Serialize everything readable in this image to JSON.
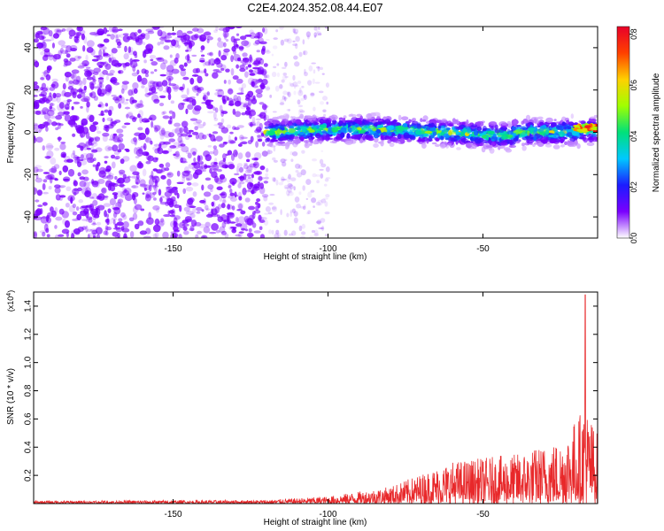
{
  "title": "C2E4.2024.352.08.44.E07",
  "colors": {
    "snr_line": "#e8282a",
    "frame": "#000000",
    "colorbar": [
      "#ffffff",
      "#7a00ff",
      "#1c1cff",
      "#00c8ff",
      "#00e07a",
      "#a0ff00",
      "#ffd000",
      "#ff4000",
      "#e8002a"
    ]
  },
  "chart_data": [
    {
      "type": "heatmap",
      "xlabel": "Height of straight line (km)",
      "ylabel": "Frequency (Hz)",
      "xlim": [
        -195,
        -13
      ],
      "ylim": [
        -50,
        50
      ],
      "x_ticks": [
        -150,
        -100,
        -50
      ],
      "y_ticks": [
        -40,
        -20,
        0,
        20,
        40
      ],
      "colorbar": {
        "label": "Normalized spectral amplitude",
        "range": [
          0,
          0.83
        ],
        "ticks": [
          0.0,
          0.2,
          0.4,
          0.6,
          0.8
        ],
        "tick_labels": [
          "0.0",
          "0.2",
          "0.4",
          "0.6",
          "0.8"
        ]
      },
      "regions": [
        {
          "x_range": [
            -195,
            -120
          ],
          "freq_range": [
            -50,
            50
          ],
          "amplitude": 0.03
        },
        {
          "x_range": [
            -120,
            -100
          ],
          "freq_range": [
            -50,
            50
          ],
          "amplitude": 0.015
        },
        {
          "x_range": [
            -120,
            -13
          ],
          "freq_center": 0,
          "freq_halfwidth": 6,
          "amplitude": 0.25
        },
        {
          "x_range": [
            -20,
            -13
          ],
          "freq_center": 2,
          "freq_halfwidth": 2,
          "amplitude": 0.8
        }
      ]
    },
    {
      "type": "line",
      "xlabel": "Height of straight line (km)",
      "ylabel": "SNR (10 * v/v)",
      "y_scale_label": "(x10",
      "y_scale_exp": "4",
      "y_scale_close": ")",
      "xlim": [
        -195,
        -13
      ],
      "ylim": [
        0,
        1.5
      ],
      "x_ticks": [
        -150,
        -100,
        -50
      ],
      "y_ticks": [
        0.2,
        0.4,
        0.6,
        0.8,
        1.0,
        1.2,
        1.4
      ],
      "y_tick_labels": [
        "0.2",
        "0.4",
        "0.6",
        "0.8",
        "1.0",
        "1.2",
        "1.4"
      ],
      "envelope": [
        {
          "x": -195,
          "y": 0.02
        },
        {
          "x": -120,
          "y": 0.025
        },
        {
          "x": -100,
          "y": 0.05
        },
        {
          "x": -80,
          "y": 0.12
        },
        {
          "x": -60,
          "y": 0.3
        },
        {
          "x": -40,
          "y": 0.35
        },
        {
          "x": -25,
          "y": 0.45
        },
        {
          "x": -17,
          "y": 0.7
        },
        {
          "x": -13,
          "y": 0.5
        }
      ],
      "peak": {
        "x": -17,
        "y": 1.48
      }
    }
  ]
}
